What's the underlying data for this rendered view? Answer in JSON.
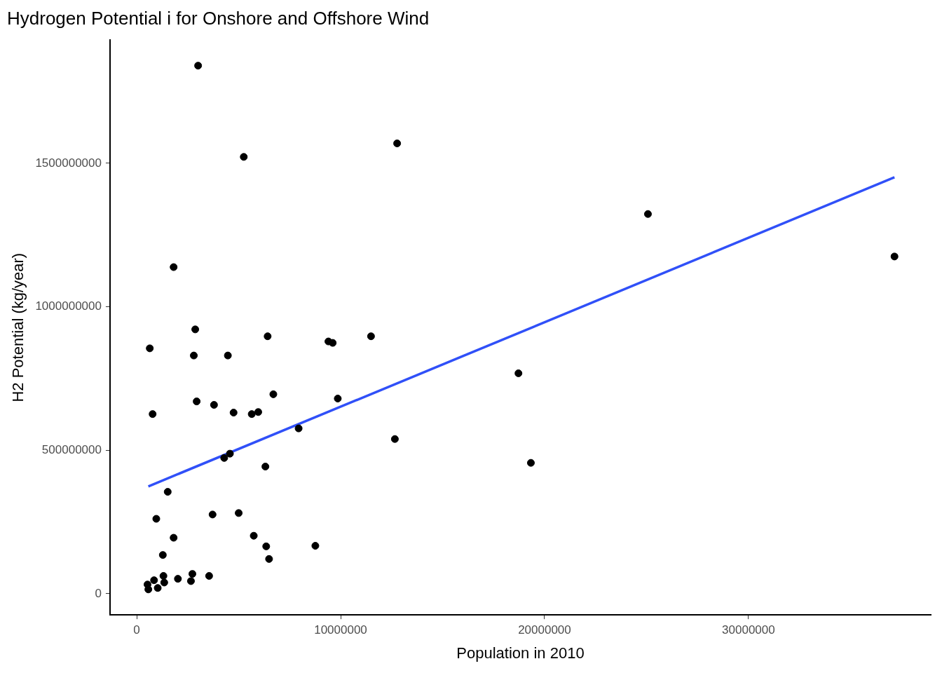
{
  "chart_data": {
    "type": "scatter",
    "title": "Hydrogen Potential i for Onshore and Offshore Wind",
    "xlabel": "Population in 2010",
    "ylabel": "H2 Potential (kg/year)",
    "xlim": [
      -1310000,
      38940000
    ],
    "xticks": [
      0,
      10000000,
      20000000,
      30000000
    ],
    "ylim": [
      -74000000,
      1929000000
    ],
    "yticks": [
      0,
      500000000,
      1000000000,
      1500000000
    ],
    "grid": false,
    "legend": false,
    "series": [
      {
        "type": "scatter",
        "marker": "circle",
        "color": "#000000",
        "x": [
          3010000,
          5250000,
          12770000,
          25070000,
          37160000,
          1810000,
          2870000,
          640000,
          2800000,
          4470000,
          6420000,
          9400000,
          9610000,
          11490000,
          18720000,
          780000,
          2940000,
          3790000,
          4750000,
          5640000,
          5960000,
          6700000,
          9860000,
          7940000,
          12660000,
          4290000,
          4570000,
          6310000,
          19330000,
          1520000,
          3720000,
          5000000,
          960000,
          1810000,
          5740000,
          6350000,
          8760000,
          6490000,
          1280000,
          1310000,
          850000,
          530000,
          570000,
          1030000,
          1350000,
          2020000,
          2730000,
          2660000,
          3550000
        ],
        "values": [
          1840000000,
          1522000000,
          1569000000,
          1323000000,
          1175000000,
          1138000000,
          921000000,
          855000000,
          830000000,
          830000000,
          897000000,
          879000000,
          874000000,
          897000000,
          768000000,
          626000000,
          670000000,
          658000000,
          631000000,
          626000000,
          633000000,
          695000000,
          680000000,
          576000000,
          539000000,
          473000000,
          488000000,
          443000000,
          456000000,
          355000000,
          276000000,
          281000000,
          261000000,
          195000000,
          202000000,
          165000000,
          167000000,
          121000000,
          135000000,
          62000000,
          47000000,
          32000000,
          15000000,
          20000000,
          39000000,
          52000000,
          69000000,
          44000000,
          62000000
        ]
      },
      {
        "type": "line",
        "color": "#3050f8",
        "x": [
          570000,
          37160000
        ],
        "values": [
          374000000,
          1451000000
        ]
      }
    ]
  }
}
